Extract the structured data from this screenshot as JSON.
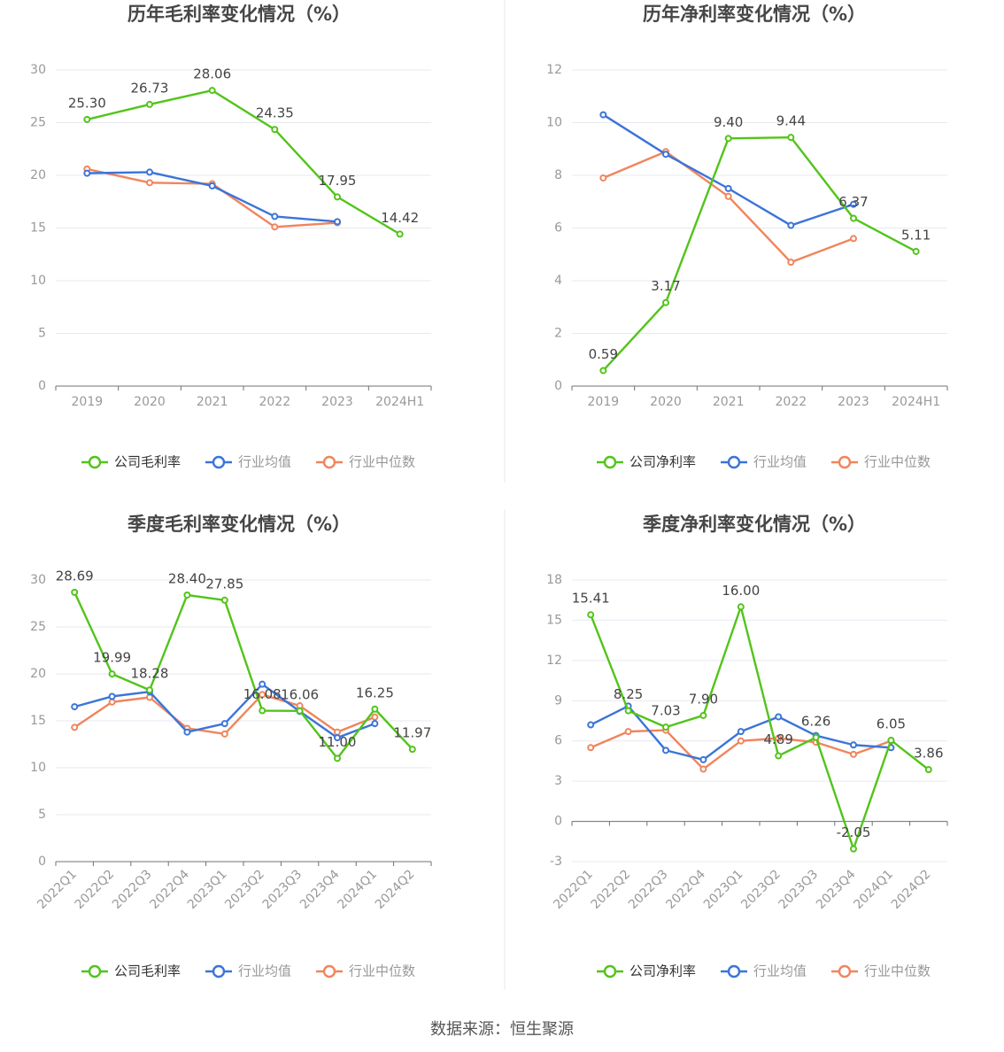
{
  "colors": {
    "company": "#52c41a",
    "industry_avg": "#3b74d9",
    "industry_median": "#f0855c",
    "grid": "#e6e9f0",
    "axis": "#6e7079",
    "label": "#999999",
    "value_label": "#444444",
    "title": "#464646",
    "divider": "#e8e8e8"
  },
  "footer": "数据来源：恒生聚源",
  "chart_data": [
    {
      "type": "line",
      "title": "历年毛利率变化情况（%）",
      "categories": [
        "2019",
        "2020",
        "2021",
        "2022",
        "2023",
        "2024H1"
      ],
      "ylim": [
        0,
        30
      ],
      "yticks": [
        0,
        5,
        10,
        15,
        20,
        25,
        30
      ],
      "grid": true,
      "legend_position": "bottom",
      "x_labels_rotated": false,
      "series": [
        {
          "name": "公司毛利率",
          "key": "company",
          "values": [
            25.3,
            26.73,
            28.06,
            24.35,
            17.95,
            14.42
          ],
          "labels": [
            "25.30",
            "26.73",
            "28.06",
            "24.35",
            "17.95",
            "14.42"
          ]
        },
        {
          "name": "行业均值",
          "key": "industry_avg",
          "values": [
            20.2,
            20.3,
            19.0,
            16.1,
            15.6,
            null
          ]
        },
        {
          "name": "行业中位数",
          "key": "industry_median",
          "values": [
            20.6,
            19.3,
            19.2,
            15.1,
            15.5,
            null
          ]
        }
      ]
    },
    {
      "type": "line",
      "title": "历年净利率变化情况（%）",
      "categories": [
        "2019",
        "2020",
        "2021",
        "2022",
        "2023",
        "2024H1"
      ],
      "ylim": [
        0,
        12
      ],
      "yticks": [
        0,
        2,
        4,
        6,
        8,
        10,
        12
      ],
      "grid": true,
      "legend_position": "bottom",
      "x_labels_rotated": false,
      "series": [
        {
          "name": "公司净利率",
          "key": "company",
          "values": [
            0.59,
            3.17,
            9.4,
            9.44,
            6.37,
            5.11
          ],
          "labels": [
            "0.59",
            "3.17",
            "9.40",
            "9.44",
            "6.37",
            "5.11"
          ]
        },
        {
          "name": "行业均值",
          "key": "industry_avg",
          "values": [
            10.3,
            8.8,
            7.5,
            6.1,
            6.9,
            null
          ]
        },
        {
          "name": "行业中位数",
          "key": "industry_median",
          "values": [
            7.9,
            8.9,
            7.2,
            4.7,
            5.6,
            null
          ]
        }
      ]
    },
    {
      "type": "line",
      "title": "季度毛利率变化情况（%）",
      "categories": [
        "2022Q1",
        "2022Q2",
        "2022Q3",
        "2022Q4",
        "2023Q1",
        "2023Q2",
        "2023Q3",
        "2023Q4",
        "2024Q1",
        "2024Q2"
      ],
      "ylim": [
        0,
        30
      ],
      "yticks": [
        0,
        5,
        10,
        15,
        20,
        25,
        30
      ],
      "grid": true,
      "legend_position": "bottom",
      "x_labels_rotated": true,
      "series": [
        {
          "name": "公司毛利率",
          "key": "company",
          "values": [
            28.69,
            19.99,
            18.28,
            28.4,
            27.85,
            16.08,
            16.06,
            11.0,
            16.25,
            11.97
          ],
          "labels": [
            "28.69",
            "19.99",
            "18.28",
            "28.40",
            "27.85",
            "16.08",
            "16.06",
            "11.00",
            "16.25",
            "11.97"
          ]
        },
        {
          "name": "行业均值",
          "key": "industry_avg",
          "values": [
            16.5,
            17.6,
            18.1,
            13.8,
            14.7,
            18.9,
            16.0,
            13.2,
            14.7,
            null
          ]
        },
        {
          "name": "行业中位数",
          "key": "industry_median",
          "values": [
            14.3,
            17.0,
            17.5,
            14.2,
            13.6,
            17.8,
            16.6,
            13.8,
            15.4,
            null
          ]
        }
      ]
    },
    {
      "type": "line",
      "title": "季度净利率变化情况（%）",
      "categories": [
        "2022Q1",
        "2022Q2",
        "2022Q3",
        "2022Q4",
        "2023Q1",
        "2023Q2",
        "2023Q3",
        "2023Q4",
        "2024Q1",
        "2024Q2"
      ],
      "ylim": [
        -3,
        18
      ],
      "yticks": [
        -3,
        0,
        3,
        6,
        9,
        12,
        15,
        18
      ],
      "grid": true,
      "legend_position": "bottom",
      "x_labels_rotated": true,
      "series": [
        {
          "name": "公司净利率",
          "key": "company",
          "values": [
            15.41,
            8.25,
            7.03,
            7.9,
            16.0,
            4.89,
            6.26,
            -2.05,
            6.05,
            3.86
          ],
          "labels": [
            "15.41",
            "8.25",
            "7.03",
            "7.90",
            "16.00",
            "4.89",
            "6.26",
            "-2.05",
            "6.05",
            "3.86"
          ]
        },
        {
          "name": "行业均值",
          "key": "industry_avg",
          "values": [
            7.2,
            8.6,
            5.3,
            4.6,
            6.7,
            7.8,
            6.4,
            5.7,
            5.5,
            null
          ]
        },
        {
          "name": "行业中位数",
          "key": "industry_median",
          "values": [
            5.5,
            6.7,
            6.8,
            3.9,
            6.0,
            6.2,
            5.9,
            5.0,
            6.0,
            null
          ]
        }
      ]
    }
  ]
}
